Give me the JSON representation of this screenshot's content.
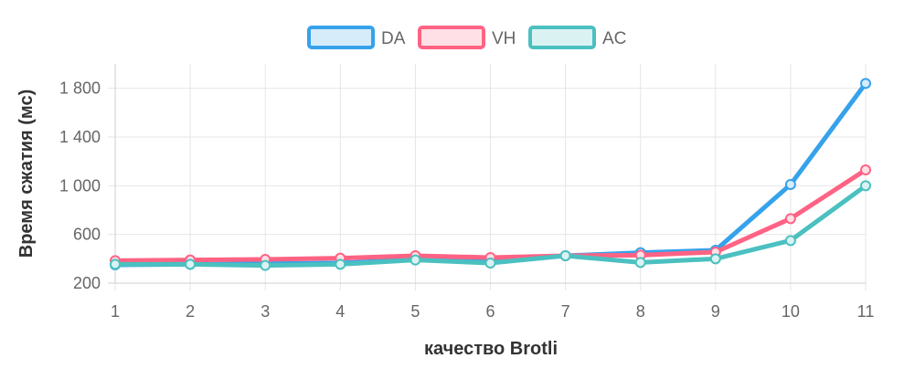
{
  "chart_data": {
    "type": "line",
    "title": "",
    "xlabel": "качество Brotli",
    "ylabel": "Время сжатия (мс)",
    "x": [
      1,
      2,
      3,
      4,
      5,
      6,
      7,
      8,
      9,
      10,
      11
    ],
    "ylim": [
      200,
      2000
    ],
    "yticks": [
      200,
      600,
      1000,
      1400,
      1800
    ],
    "ytick_labels": [
      "200",
      "600",
      "1 000",
      "1 400",
      "1 800"
    ],
    "grid": true,
    "legend_position": "top",
    "series": [
      {
        "name": "DA",
        "color": "#36a2eb",
        "fill": "#d7ecfb",
        "values": [
          350,
          355,
          360,
          365,
          395,
          395,
          425,
          450,
          470,
          1010,
          1840
        ]
      },
      {
        "name": "VH",
        "color": "#ff6384",
        "fill": "#ffe0e6",
        "values": [
          385,
          390,
          395,
          405,
          425,
          410,
          425,
          430,
          455,
          730,
          1130
        ]
      },
      {
        "name": "AC",
        "color": "#4bc0c0",
        "fill": "#dbf2f2",
        "values": [
          355,
          355,
          345,
          355,
          390,
          365,
          425,
          370,
          400,
          550,
          1000
        ]
      }
    ]
  }
}
